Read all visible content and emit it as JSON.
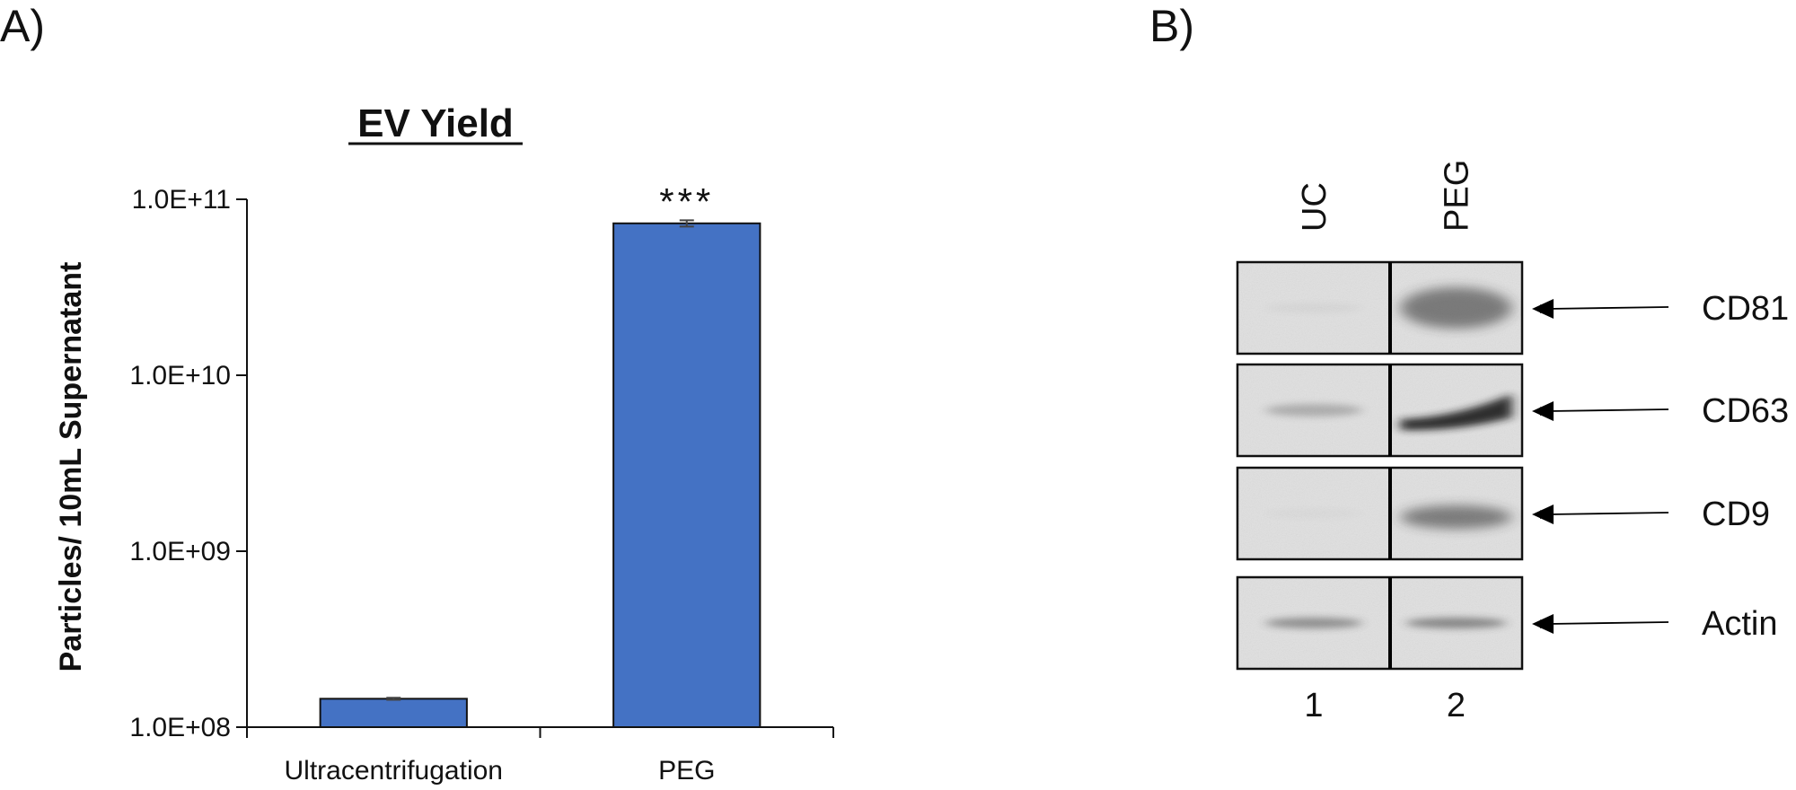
{
  "panel_a": {
    "label": "A)"
  },
  "panel_b": {
    "label": "B)"
  },
  "chart_data": {
    "type": "bar",
    "title": "EV Yield",
    "xlabel": "",
    "ylabel": "Particles/ 10mL Supernatant",
    "yscale": "log",
    "ylim": [
      100000000,
      100000000000
    ],
    "yticks": [
      100000000,
      1000000000,
      10000000000,
      100000000000
    ],
    "ytick_labels": [
      "1.0E+08",
      "1.0E+09",
      "1.0E+10",
      "1.0E+11"
    ],
    "categories": [
      "Ultracentrifugation",
      "PEG"
    ],
    "values": [
      145000000,
      73000000000
    ],
    "errors": [
      2000000,
      3000000000
    ],
    "annotations": [
      "",
      "***"
    ],
    "bar_color": "#4472c4",
    "grid": false,
    "legend": "none"
  },
  "blot": {
    "lanes": [
      "UC",
      "PEG"
    ],
    "lane_numbers": [
      "1",
      "2"
    ],
    "markers": [
      "CD81",
      "CD63",
      "CD9",
      "Actin"
    ]
  }
}
